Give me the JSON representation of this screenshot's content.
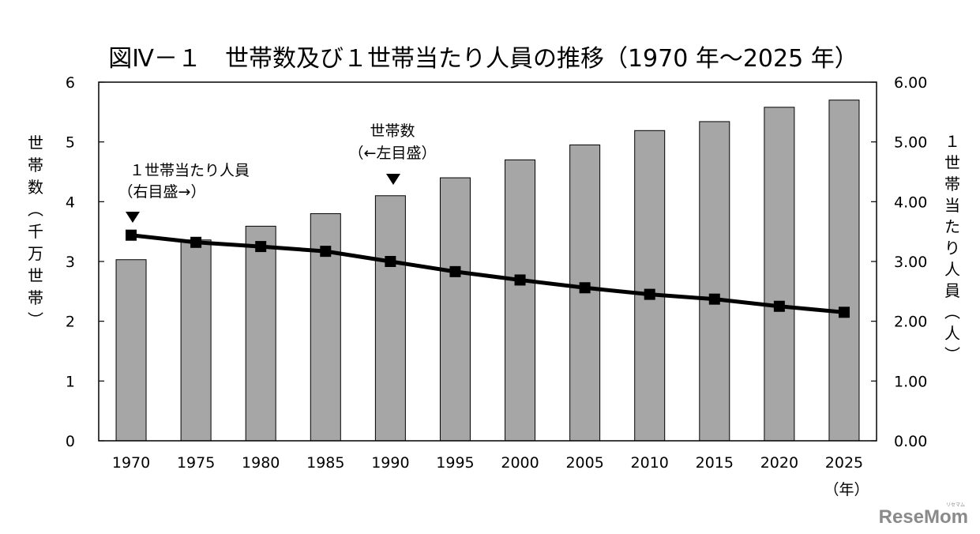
{
  "chart_data": {
    "type": "bar+line",
    "title": "図Ⅳ－１　世帯数及び１世帯当たり人員の推移（1970 年～2025 年）",
    "categories": [
      "1970",
      "1975",
      "1980",
      "1985",
      "1990",
      "1995",
      "2000",
      "2005",
      "2010",
      "2015",
      "2020",
      "2025"
    ],
    "x_unit": "（年）",
    "series": [
      {
        "kind": "bar",
        "axis": "left",
        "color": "#a6a6a6",
        "values": [
          3.03,
          3.36,
          3.59,
          3.8,
          4.1,
          4.4,
          4.7,
          4.95,
          5.19,
          5.34,
          5.58,
          5.7
        ]
      },
      {
        "kind": "line",
        "axis": "right",
        "color": "#000000",
        "values": [
          3.44,
          3.32,
          3.25,
          3.17,
          3.0,
          2.83,
          2.69,
          2.56,
          2.45,
          2.37,
          2.25,
          2.15
        ]
      }
    ],
    "y_left": {
      "label_chars": [
        "世",
        "帯",
        "数",
        "︵",
        "千",
        "万",
        "世",
        "帯",
        "︶"
      ],
      "ylim": [
        0,
        6
      ],
      "ticks": [
        "0",
        "1",
        "2",
        "3",
        "4",
        "5",
        "6"
      ]
    },
    "y_right": {
      "label_chars": [
        "１",
        "世",
        "帯",
        "当",
        "た",
        "り",
        "人",
        "員",
        "︵",
        "人",
        "︶"
      ],
      "ylim": [
        0,
        6
      ],
      "ticks": [
        "0.00",
        "1.00",
        "2.00",
        "3.00",
        "4.00",
        "5.00",
        "6.00"
      ]
    },
    "annotations": {
      "line_label": [
        "１世帯当たり人員",
        "（右目盛→）"
      ],
      "bar_label": [
        "世帯数",
        "（←左目盛）"
      ]
    },
    "grid": false,
    "legend": "none"
  },
  "watermark": "ReseMom",
  "watermark_small": "リセマム"
}
